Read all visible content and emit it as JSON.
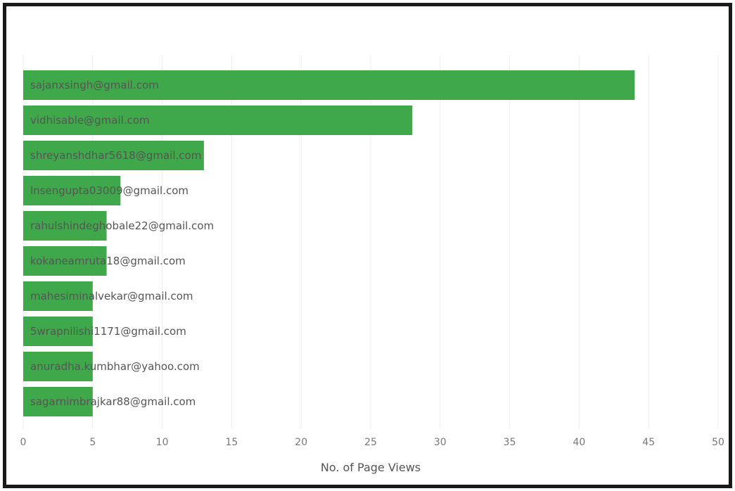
{
  "chart_data": {
    "type": "bar",
    "orientation": "horizontal",
    "categories": [
      "sajanxsingh@gmail.com",
      "vidhisable@gmail.com",
      "shreyanshdhar5618@gmail.com",
      "lnsengupta03009@gmail.com",
      "rahulshindeghobale22@gmail.com",
      "kokaneamruta18@gmail.com",
      "mahesiminalvekar@gmail.com",
      "5wrapnilishi1171@gmail.com",
      "anuradha.kumbhar@yahoo.com",
      "sagarnimbrajkar88@gmail.com"
    ],
    "values": [
      44,
      28,
      13,
      7,
      6,
      6,
      5,
      5,
      5,
      5
    ],
    "xlabel": "No. of Page Views",
    "ylabel": "",
    "xlim": [
      0,
      50
    ],
    "xticks": [
      "0",
      "5",
      "10",
      "15",
      "20",
      "25",
      "30",
      "35",
      "40",
      "45",
      "50"
    ],
    "grid": true,
    "bar_color": "#3fa84a"
  }
}
